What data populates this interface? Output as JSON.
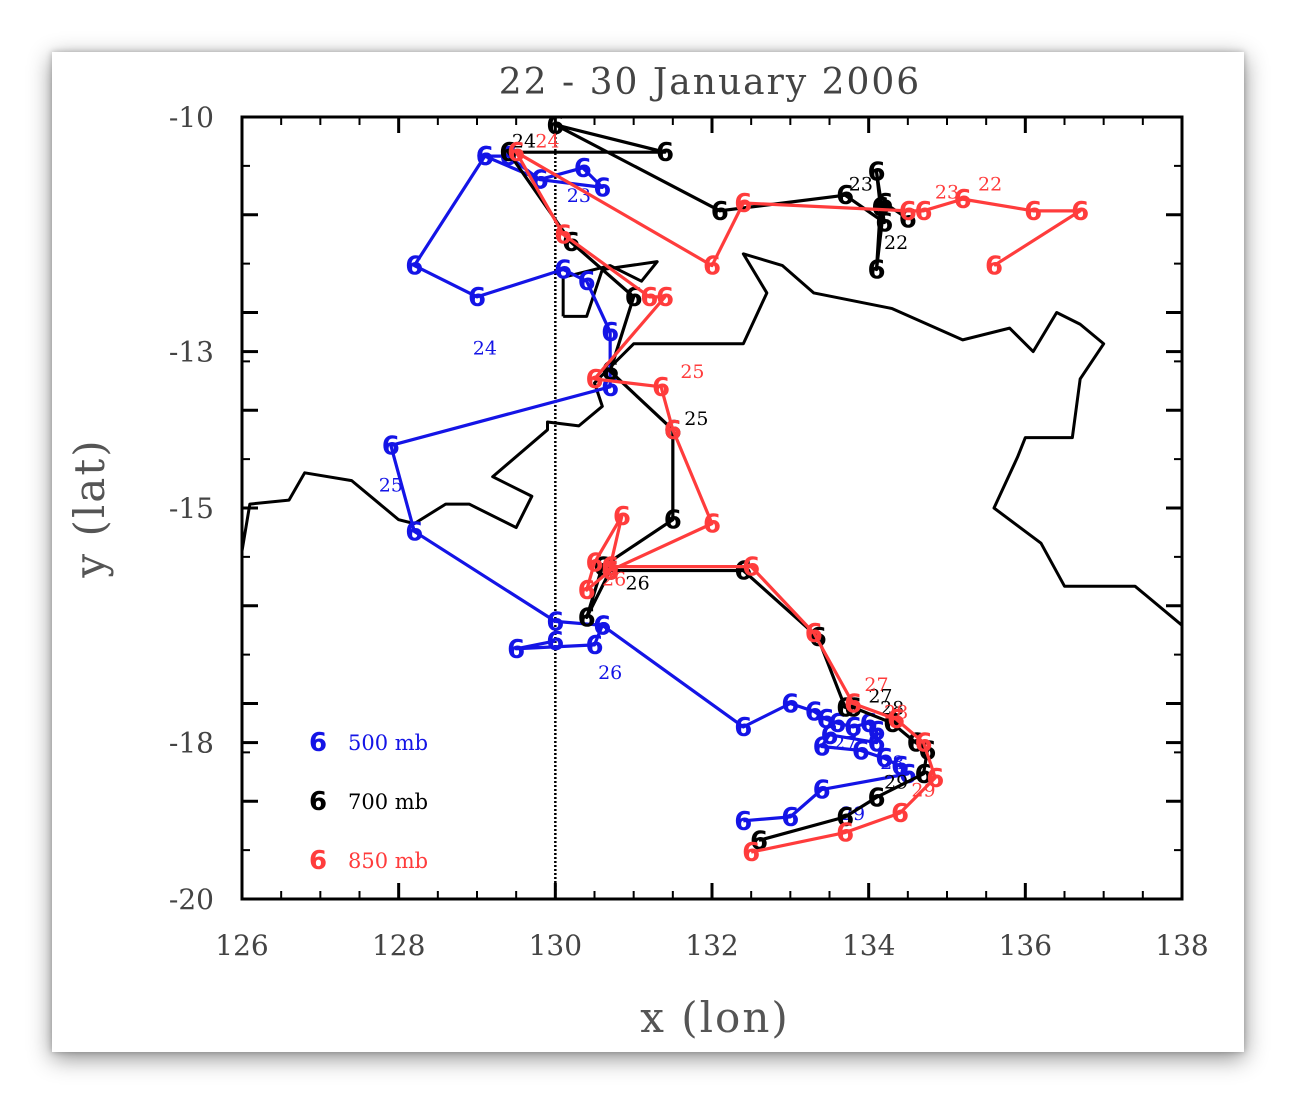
{
  "chart_data": {
    "type": "line",
    "title": "22 - 30 January 2006",
    "xlabel": "x (lon)",
    "ylabel": "y (lat)",
    "xlim": [
      126,
      138
    ],
    "ylim": [
      -20,
      -10
    ],
    "xticks": [
      "126",
      "128",
      "130",
      "132",
      "134",
      "136",
      "138"
    ],
    "yticks": [
      "-10",
      "-13",
      "-15",
      "-18",
      "-20"
    ],
    "ytick_values": [
      -10,
      -13,
      -15,
      -18,
      -20
    ],
    "marker_symbol": "6",
    "legend_placement": "bottom-left",
    "vertical_reference_line_x": 130,
    "coastline": [
      [
        [
          126.0,
          -15.55
        ],
        [
          126.1,
          -14.95
        ],
        [
          126.6,
          -14.9
        ],
        [
          126.8,
          -14.55
        ],
        [
          127.4,
          -14.65
        ],
        [
          128.0,
          -15.15
        ],
        [
          128.2,
          -15.2
        ],
        [
          128.6,
          -14.95
        ],
        [
          128.9,
          -14.95
        ],
        [
          129.5,
          -15.25
        ],
        [
          129.7,
          -14.85
        ],
        [
          129.2,
          -14.6
        ],
        [
          129.9,
          -14.0
        ],
        [
          129.9,
          -13.9
        ],
        [
          130.3,
          -13.95
        ],
        [
          130.6,
          -13.7
        ],
        [
          130.5,
          -13.4
        ],
        [
          131.0,
          -12.9
        ],
        [
          132.4,
          -12.9
        ],
        [
          132.7,
          -12.25
        ],
        [
          132.4,
          -11.75
        ],
        [
          132.9,
          -11.9
        ],
        [
          133.3,
          -12.25
        ],
        [
          134.3,
          -12.45
        ],
        [
          135.2,
          -12.85
        ],
        [
          135.8,
          -12.7
        ],
        [
          136.1,
          -13.0
        ],
        [
          136.4,
          -12.5
        ],
        [
          136.7,
          -12.65
        ],
        [
          137.0,
          -12.9
        ],
        [
          136.7,
          -13.35
        ],
        [
          136.6,
          -14.1
        ],
        [
          136.0,
          -14.1
        ],
        [
          135.9,
          -14.35
        ],
        [
          135.6,
          -15.0
        ],
        [
          136.2,
          -15.45
        ],
        [
          136.5,
          -16.0
        ],
        [
          137.4,
          -16.0
        ],
        [
          138.0,
          -16.5
        ]
      ],
      [
        [
          130.1,
          -12.55
        ],
        [
          130.1,
          -12.05
        ],
        [
          130.7,
          -11.9
        ],
        [
          131.1,
          -12.1
        ],
        [
          131.3,
          -11.85
        ],
        [
          130.6,
          -11.95
        ],
        [
          130.4,
          -12.55
        ],
        [
          130.1,
          -12.55
        ]
      ]
    ],
    "series": [
      {
        "name": "500 mb",
        "color": "#1414e6",
        "points": [
          [
            130.0,
            -16.7
          ],
          [
            129.5,
            -16.8
          ],
          [
            130.5,
            -16.75
          ],
          [
            130.6,
            -16.5
          ],
          [
            132.4,
            -17.8
          ],
          [
            133.0,
            -17.5
          ],
          [
            133.3,
            -17.6
          ],
          [
            133.45,
            -17.7
          ],
          [
            133.6,
            -17.75
          ],
          [
            133.8,
            -17.8
          ],
          [
            134.0,
            -17.75
          ],
          [
            134.1,
            -17.85
          ],
          [
            134.1,
            -18.0
          ],
          [
            133.5,
            -17.9
          ],
          [
            133.4,
            -18.05
          ],
          [
            133.9,
            -18.1
          ],
          [
            134.2,
            -18.2
          ],
          [
            134.4,
            -18.3
          ],
          [
            134.5,
            -18.4
          ],
          [
            133.4,
            -18.6
          ],
          [
            133.0,
            -18.95
          ],
          [
            132.4,
            -19.0
          ]
        ],
        "labels": [
          {
            "text": "26",
            "x": 130.7,
            "y": -17.1
          },
          {
            "text": "27",
            "x": 133.7,
            "y": -18.0
          },
          {
            "text": "28",
            "x": 134.3,
            "y": -18.25
          },
          {
            "text": "29",
            "x": 133.8,
            "y": -18.9
          }
        ]
      },
      {
        "name": "500 mb",
        "color": "#1414e6",
        "points": [
          [
            129.1,
            -10.5
          ],
          [
            129.4,
            -10.5
          ],
          [
            129.8,
            -10.8
          ],
          [
            130.35,
            -10.65
          ],
          [
            130.6,
            -10.9
          ],
          [
            129.8,
            -10.8
          ],
          [
            129.1,
            -10.5
          ],
          [
            128.2,
            -11.9
          ],
          [
            129.0,
            -12.3
          ],
          [
            130.1,
            -11.95
          ],
          [
            130.4,
            -12.1
          ],
          [
            130.7,
            -12.75
          ],
          [
            130.7,
            -13.45
          ],
          [
            127.9,
            -14.2
          ],
          [
            128.2,
            -15.3
          ],
          [
            130.0,
            -16.45
          ],
          [
            130.6,
            -16.5
          ]
        ],
        "labels": [
          {
            "text": "23",
            "x": 130.3,
            "y": -11.0
          },
          {
            "text": "24",
            "x": 129.1,
            "y": -12.95
          },
          {
            "text": "25",
            "x": 127.9,
            "y": -14.7
          }
        ]
      },
      {
        "name": "700 mb",
        "color": "#000000",
        "points": [
          [
            134.5,
            -11.3
          ],
          [
            134.2,
            -11.1
          ],
          [
            134.1,
            -11.95
          ],
          [
            134.15,
            -11.15
          ],
          [
            134.1,
            -10.7
          ],
          [
            134.2,
            -11.35
          ],
          [
            133.7,
            -11.0
          ],
          [
            132.1,
            -11.2
          ],
          [
            130.0,
            -10.1
          ],
          [
            131.4,
            -10.45
          ],
          [
            129.4,
            -10.45
          ],
          [
            130.2,
            -11.6
          ],
          [
            131.0,
            -12.3
          ],
          [
            130.7,
            -13.25
          ],
          [
            131.5,
            -14.0
          ],
          [
            131.5,
            -15.15
          ],
          [
            130.6,
            -15.75
          ],
          [
            130.4,
            -16.4
          ],
          [
            130.7,
            -15.8
          ],
          [
            132.4,
            -15.8
          ],
          [
            133.35,
            -16.65
          ],
          [
            133.7,
            -17.55
          ],
          [
            133.8,
            -17.55
          ],
          [
            134.3,
            -17.75
          ],
          [
            134.6,
            -18.0
          ],
          [
            134.75,
            -18.1
          ],
          [
            134.7,
            -18.4
          ],
          [
            134.1,
            -18.7
          ],
          [
            133.7,
            -18.95
          ],
          [
            132.6,
            -19.25
          ]
        ],
        "labels": [
          {
            "text": "22",
            "x": 134.35,
            "y": -11.6
          },
          {
            "text": "23",
            "x": 133.9,
            "y": -10.85
          },
          {
            "text": "24",
            "x": 129.6,
            "y": -10.3
          },
          {
            "text": "25",
            "x": 131.8,
            "y": -13.85
          },
          {
            "text": "26",
            "x": 131.05,
            "y": -15.95
          },
          {
            "text": "27",
            "x": 134.15,
            "y": -17.4
          },
          {
            "text": "28",
            "x": 134.3,
            "y": -17.55
          },
          {
            "text": "29",
            "x": 134.35,
            "y": -18.5
          }
        ]
      },
      {
        "name": "850 mb",
        "color": "#ff3c3c",
        "points": [
          [
            135.6,
            -11.9
          ],
          [
            136.7,
            -11.2
          ],
          [
            136.1,
            -11.2
          ],
          [
            135.2,
            -11.05
          ],
          [
            134.7,
            -11.2
          ],
          [
            134.5,
            -11.2
          ],
          [
            132.4,
            -11.1
          ],
          [
            132.0,
            -11.9
          ],
          [
            129.5,
            -10.45
          ],
          [
            130.1,
            -11.5
          ],
          [
            131.2,
            -12.3
          ],
          [
            131.4,
            -12.3
          ],
          [
            130.5,
            -13.35
          ],
          [
            131.35,
            -13.45
          ],
          [
            131.5,
            -14.0
          ],
          [
            132.0,
            -15.2
          ],
          [
            130.7,
            -15.8
          ],
          [
            130.4,
            -16.05
          ],
          [
            130.5,
            -15.7
          ],
          [
            130.85,
            -15.1
          ],
          [
            130.7,
            -15.75
          ],
          [
            132.5,
            -15.75
          ],
          [
            133.3,
            -16.6
          ],
          [
            133.8,
            -17.5
          ],
          [
            134.35,
            -17.7
          ],
          [
            134.7,
            -18.0
          ],
          [
            134.85,
            -18.45
          ],
          [
            134.4,
            -18.9
          ],
          [
            133.7,
            -19.15
          ],
          [
            132.5,
            -19.4
          ]
        ],
        "labels": [
          {
            "text": "22",
            "x": 135.55,
            "y": -10.85
          },
          {
            "text": "23",
            "x": 135.0,
            "y": -10.95
          },
          {
            "text": "24",
            "x": 129.9,
            "y": -10.3
          },
          {
            "text": "25",
            "x": 131.75,
            "y": -13.25
          },
          {
            "text": "26",
            "x": 130.75,
            "y": -15.9
          },
          {
            "text": "27",
            "x": 134.1,
            "y": -17.25
          },
          {
            "text": "28",
            "x": 134.35,
            "y": -17.6
          },
          {
            "text": "29",
            "x": 134.7,
            "y": -18.6
          }
        ]
      }
    ]
  }
}
